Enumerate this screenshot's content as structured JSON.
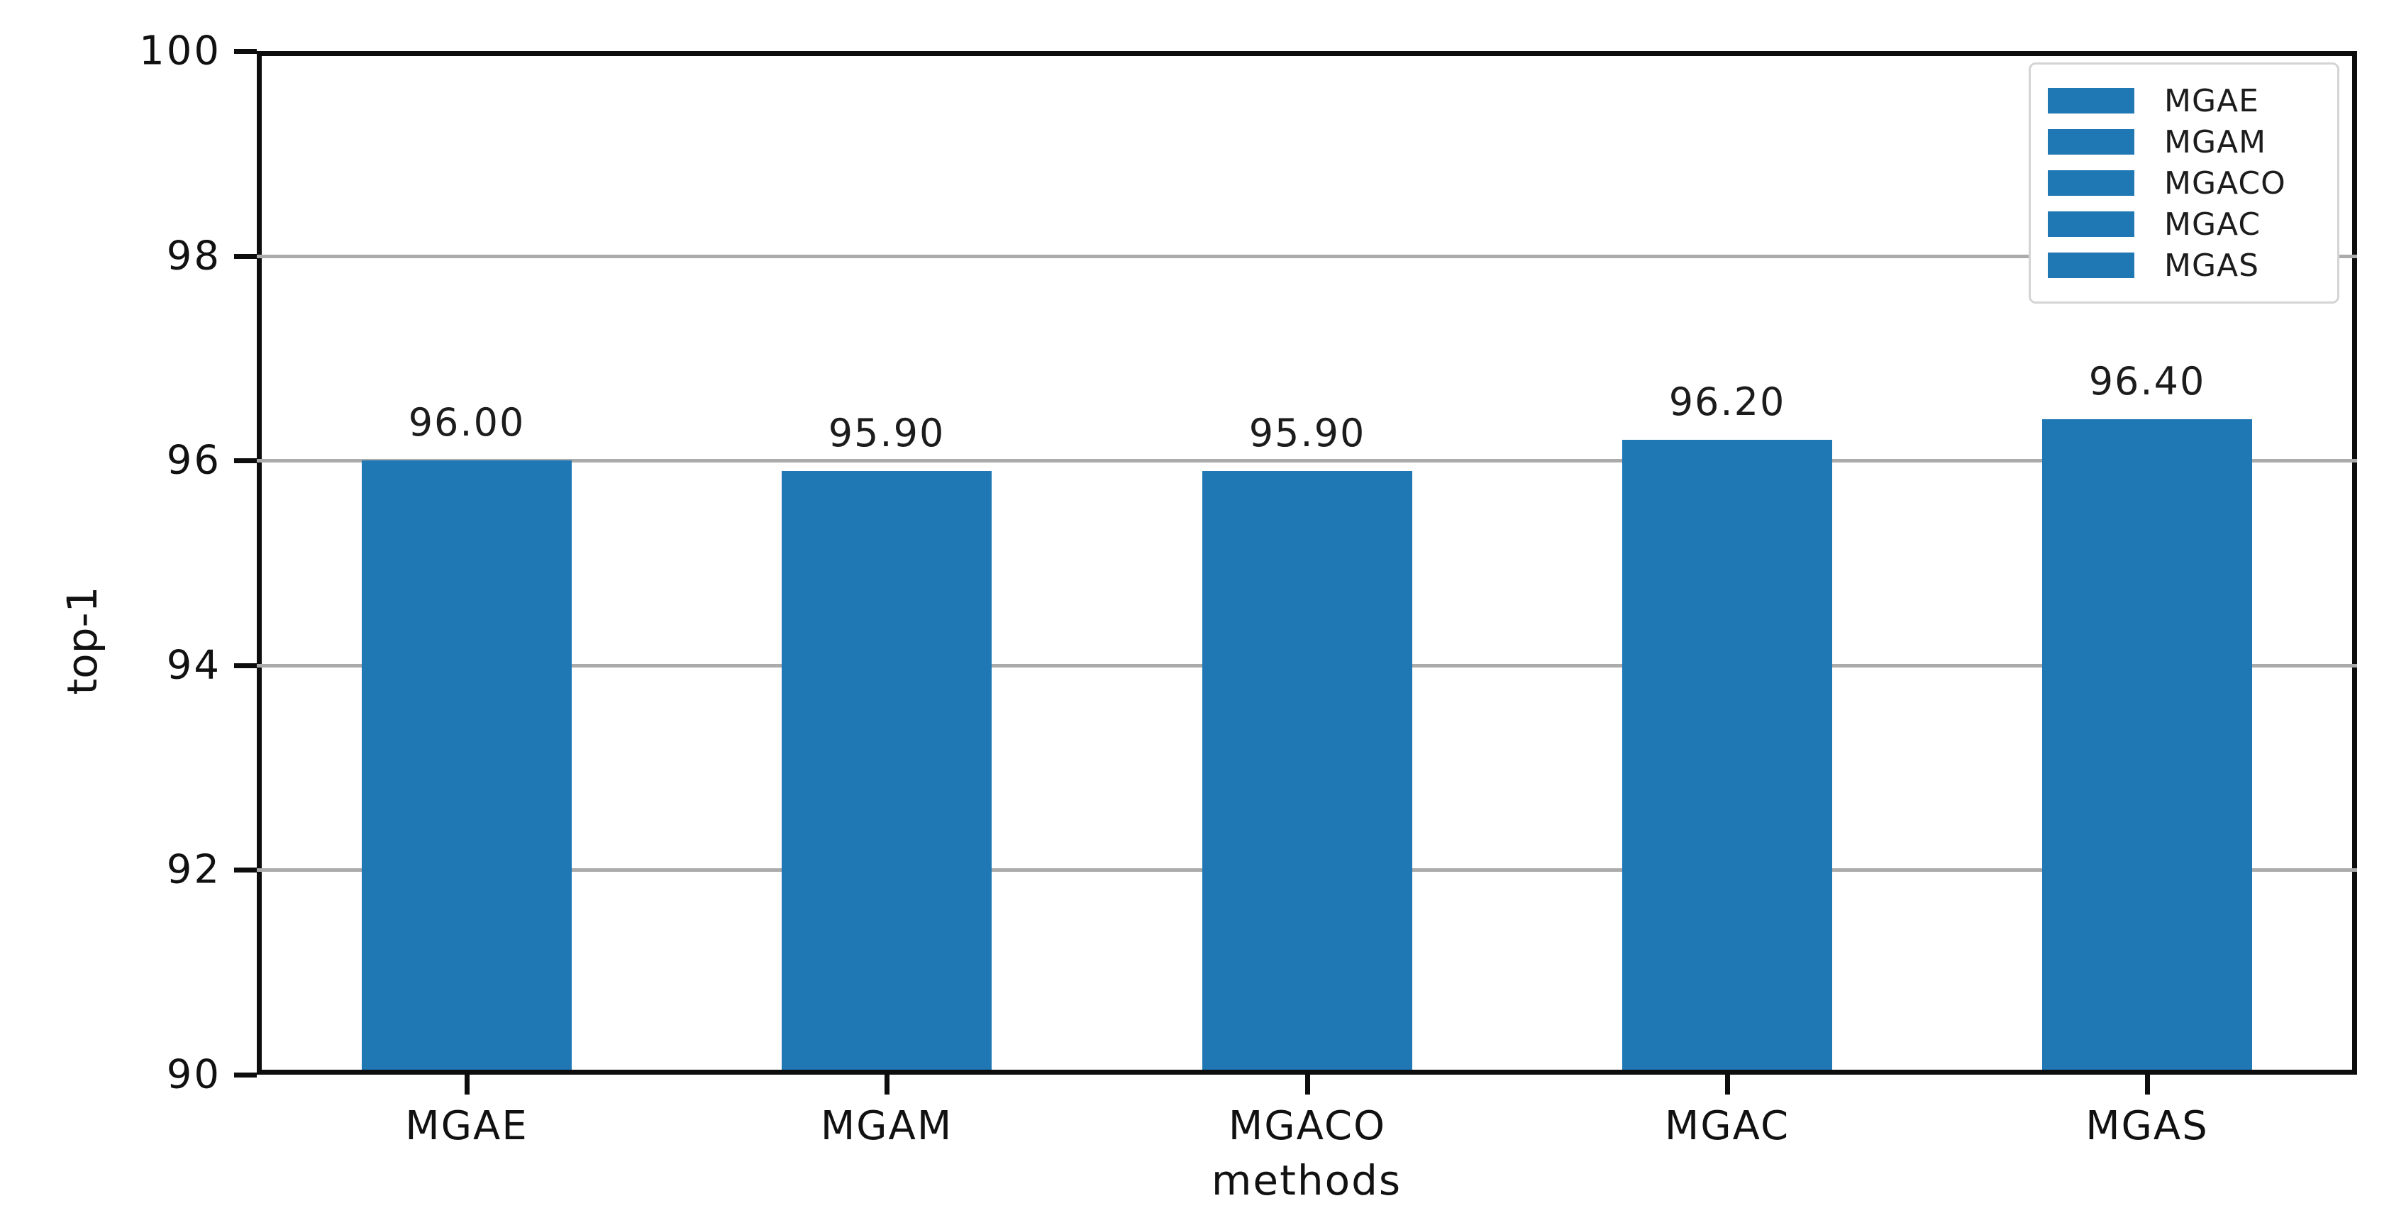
{
  "chart_data": {
    "type": "bar",
    "title": "",
    "xlabel": "methods",
    "ylabel": "top-1",
    "categories": [
      "MGAE",
      "MGAM",
      "MGACO",
      "MGAC",
      "MGAS"
    ],
    "values": [
      96.0,
      95.9,
      95.9,
      96.2,
      96.4
    ],
    "bar_labels": [
      "96.00",
      "95.90",
      "95.90",
      "96.20",
      "96.40"
    ],
    "ylim": [
      90,
      100
    ],
    "yticks": [
      90,
      92,
      94,
      96,
      98,
      100
    ],
    "ytick_labels": [
      "90",
      "92",
      "94",
      "96",
      "98",
      "100"
    ],
    "gridline_values": [
      92,
      94,
      96,
      98
    ],
    "grid_on": true,
    "bar_color": "#1f77b4",
    "grid_color": "#ababab",
    "legend": {
      "position": "upper right",
      "entries": [
        "MGAE",
        "MGAM",
        "MGACO",
        "MGAC",
        "MGAS"
      ]
    }
  }
}
